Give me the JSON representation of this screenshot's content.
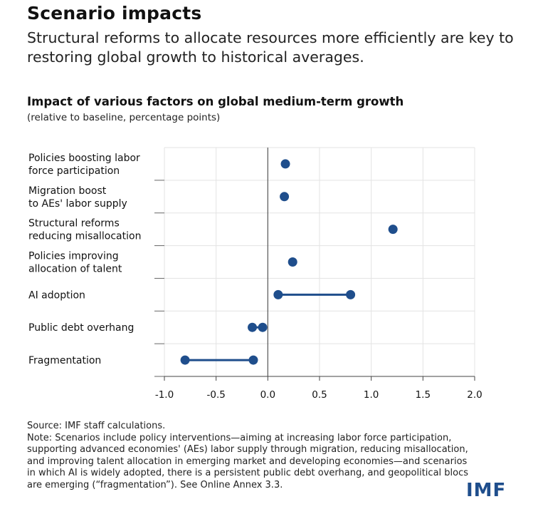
{
  "header": {
    "title": "Scenario impacts",
    "subtitle": "Structural reforms to allocate resources more efficiently are key to restoring global growth to historical averages."
  },
  "chart_data": {
    "type": "dumbbell",
    "title": "Impact of various factors on global medium-term growth",
    "subtitle": "(relative to baseline, percentage points)",
    "xlim": [
      -1.0,
      2.0
    ],
    "xticks": [
      -1.0,
      -0.5,
      0.0,
      0.5,
      1.0,
      1.5,
      2.0
    ],
    "xtick_labels": [
      "-1.0",
      "-0.5",
      "0.0",
      "0.5",
      "1.0",
      "1.5",
      "2.0"
    ],
    "categories": [
      [
        "Policies boosting labor",
        "force participation"
      ],
      [
        "Migration boost",
        "to AEs' labor supply"
      ],
      [
        "Structural reforms",
        "reducing misallocation"
      ],
      [
        "Policies improving",
        "allocation of talent"
      ],
      [
        "AI adoption"
      ],
      [
        "Public debt overhang"
      ],
      [
        "Fragmentation"
      ]
    ],
    "values": [
      [
        0.17
      ],
      [
        0.16
      ],
      [
        1.21
      ],
      [
        0.24
      ],
      [
        0.1,
        0.8
      ],
      [
        -0.15,
        -0.05
      ],
      [
        -0.8,
        -0.14
      ]
    ],
    "colors": {
      "marker": "#1f4e8c",
      "zero_line": "#555555",
      "grid": "#e3e3e3"
    }
  },
  "footer": {
    "source": "Source: IMF staff calculations.",
    "note": "Note: Scenarios include policy interventions—aiming at increasing labor force participation, supporting advanced economies' (AEs) labor supply through migration, reducing misallocation, and improving talent allocation in emerging market and developing economies—and scenarios in which AI is widely adopted, there is a persistent public debt overhang, and geopolitical blocs are emerging (“fragmentation”). See Online Annex 3.3."
  },
  "logo": {
    "text": "IMF"
  }
}
